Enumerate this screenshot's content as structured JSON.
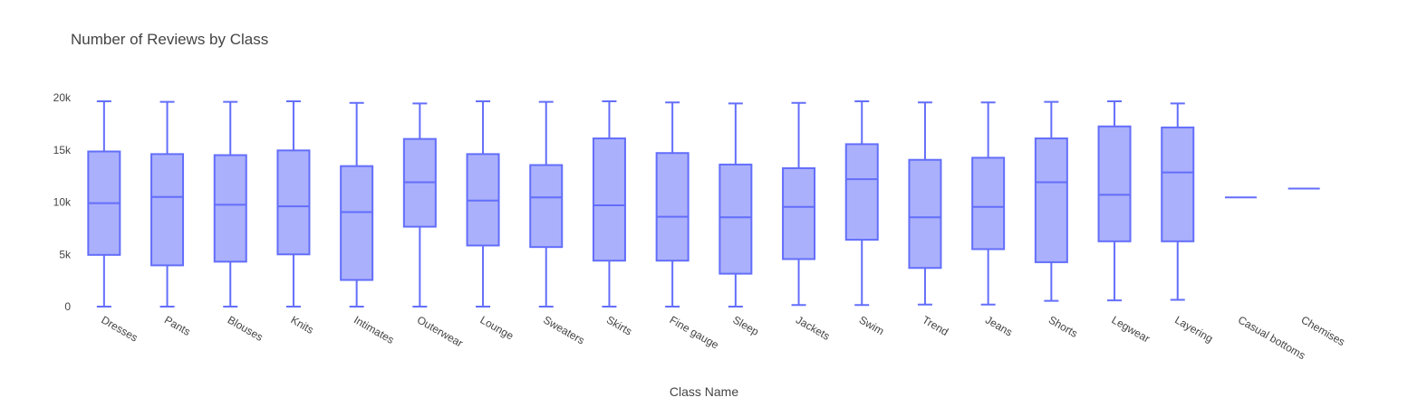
{
  "chart_data": {
    "type": "box",
    "title": "Number of Reviews by Class",
    "xlabel": "Class Name",
    "ylabel": "",
    "ylim": [
      0,
      20000
    ],
    "y_ticks": [
      0,
      5000,
      10000,
      15000,
      20000
    ],
    "y_tick_labels": [
      "0",
      "5k",
      "10k",
      "15k",
      "20k"
    ],
    "grid": false,
    "color": "#636efa",
    "fill_color": "#aab0fb",
    "categories": [
      "Dresses",
      "Pants",
      "Blouses",
      "Knits",
      "Intimates",
      "Outerwear",
      "Lounge",
      "Sweaters",
      "Skirts",
      "Fine gauge",
      "Sleep",
      "Jackets",
      "Swim",
      "Trend",
      "Jeans",
      "Shorts",
      "Legwear",
      "Layering",
      "Casual bottoms",
      "Chemises"
    ],
    "boxes": [
      {
        "min": 0,
        "q1": 4950,
        "median": 9900,
        "q3": 14850,
        "max": 19650
      },
      {
        "min": 0,
        "q1": 3950,
        "median": 10500,
        "q3": 14600,
        "max": 19600
      },
      {
        "min": 0,
        "q1": 4300,
        "median": 9750,
        "q3": 14500,
        "max": 19600
      },
      {
        "min": 0,
        "q1": 5000,
        "median": 9600,
        "q3": 14950,
        "max": 19650
      },
      {
        "min": 0,
        "q1": 2550,
        "median": 9050,
        "q3": 13450,
        "max": 19500
      },
      {
        "min": 0,
        "q1": 7650,
        "median": 11900,
        "q3": 16050,
        "max": 19450
      },
      {
        "min": 0,
        "q1": 5850,
        "median": 10150,
        "q3": 14600,
        "max": 19650
      },
      {
        "min": 0,
        "q1": 5700,
        "median": 10450,
        "q3": 13550,
        "max": 19600
      },
      {
        "min": 0,
        "q1": 4400,
        "median": 9700,
        "q3": 16100,
        "max": 19650
      },
      {
        "min": 0,
        "q1": 4400,
        "median": 8600,
        "q3": 14700,
        "max": 19550
      },
      {
        "min": 0,
        "q1": 3150,
        "median": 8550,
        "q3": 13600,
        "max": 19450
      },
      {
        "min": 150,
        "q1": 4550,
        "median": 9550,
        "q3": 13250,
        "max": 19500
      },
      {
        "min": 150,
        "q1": 6400,
        "median": 12200,
        "q3": 15550,
        "max": 19650
      },
      {
        "min": 200,
        "q1": 3700,
        "median": 8550,
        "q3": 14050,
        "max": 19550
      },
      {
        "min": 200,
        "q1": 5500,
        "median": 9550,
        "q3": 14250,
        "max": 19550
      },
      {
        "min": 550,
        "q1": 4250,
        "median": 11900,
        "q3": 16100,
        "max": 19600
      },
      {
        "min": 600,
        "q1": 6250,
        "median": 10700,
        "q3": 17250,
        "max": 19650
      },
      {
        "min": 650,
        "q1": 6250,
        "median": 12850,
        "q3": 17150,
        "max": 19450
      },
      {
        "min": 10450,
        "q1": 10450,
        "median": 10450,
        "q3": 10450,
        "max": 10450
      },
      {
        "min": 11300,
        "q1": 11300,
        "median": 11300,
        "q3": 11300,
        "max": 11300
      }
    ]
  }
}
